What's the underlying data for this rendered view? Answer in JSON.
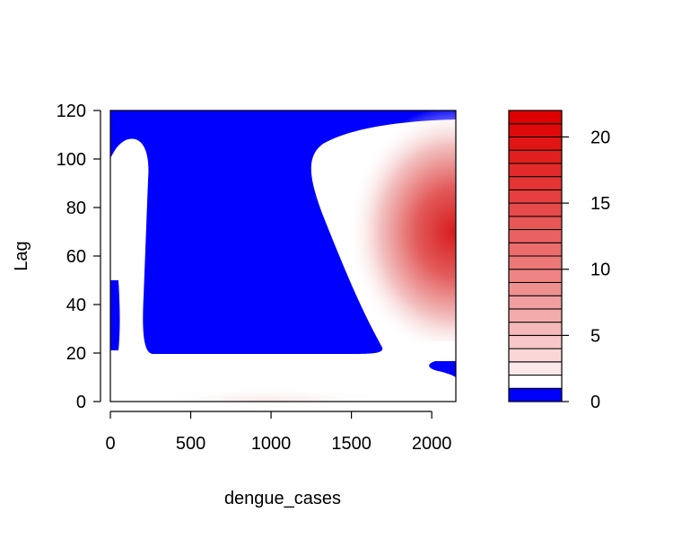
{
  "chart_data": {
    "type": "heatmap",
    "title": "",
    "xlabel": "dengue_cases",
    "ylabel": "Lag",
    "xlim": [
      0,
      2150
    ],
    "ylim": [
      0,
      120
    ],
    "x_ticks": [
      0,
      500,
      1000,
      1500,
      2000
    ],
    "x_tick_labels": [
      "0",
      "500",
      "1000",
      "1500",
      "2000"
    ],
    "y_ticks": [
      0,
      20,
      40,
      60,
      80,
      100,
      120
    ],
    "y_tick_labels": [
      "0",
      "20",
      "40",
      "60",
      "80",
      "100",
      "120"
    ],
    "color_scale": {
      "breaks": [
        0,
        1,
        2,
        3,
        4,
        5,
        6,
        7,
        8,
        9,
        10,
        11,
        12,
        13,
        14,
        15,
        16,
        17,
        18,
        19,
        20,
        21,
        22
      ],
      "below_one_color": "#0000ff",
      "low_color": "#ffffff",
      "high_color": "#dd0000",
      "ticks": [
        0,
        5,
        10,
        15,
        20
      ],
      "tick_labels": [
        "0",
        "5",
        "10",
        "15",
        "20"
      ]
    },
    "regions": [
      {
        "level": "below 1",
        "color": "#0000ff",
        "description_region": "upper band and central block"
      },
      {
        "level": "peak",
        "value": 22,
        "x": 2150,
        "y": 70
      }
    ],
    "grid": false,
    "legend": "right"
  }
}
